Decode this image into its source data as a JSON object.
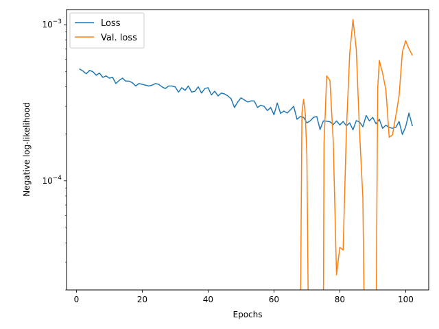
{
  "chart_data": {
    "type": "line",
    "xlabel": "Epochs",
    "ylabel": "Negative log-likelihood",
    "yscale": "log",
    "xlim": [
      -3,
      107
    ],
    "ylim": [
      2e-05,
      0.00125
    ],
    "x_ticks": [
      0,
      20,
      40,
      60,
      80,
      100
    ],
    "x_tick_labels": [
      "0",
      "20",
      "40",
      "60",
      "80",
      "100"
    ],
    "y_ticks": [
      0.0001,
      0.001
    ],
    "y_tick_labels": [
      {
        "base": "10",
        "exp": "−4"
      },
      {
        "base": "10",
        "exp": "−3"
      }
    ],
    "grid": false,
    "legend_position": "top-left",
    "series": [
      {
        "name": "Loss",
        "color": "#1f77b4",
        "x": [
          1,
          2,
          3,
          4,
          5,
          6,
          7,
          8,
          9,
          10,
          11,
          12,
          13,
          14,
          15,
          16,
          17,
          18,
          19,
          20,
          21,
          22,
          23,
          24,
          25,
          26,
          27,
          28,
          29,
          30,
          31,
          32,
          33,
          34,
          35,
          36,
          37,
          38,
          39,
          40,
          41,
          42,
          43,
          44,
          45,
          46,
          47,
          48,
          49,
          50,
          51,
          52,
          53,
          54,
          55,
          56,
          57,
          58,
          59,
          60,
          61,
          62,
          63,
          64,
          65,
          66,
          67,
          68,
          69,
          70,
          71,
          72,
          73,
          74,
          75,
          76,
          77,
          78,
          79,
          80,
          81,
          82,
          83,
          84,
          85,
          86,
          87,
          88,
          89,
          90,
          91,
          92,
          93,
          94,
          95,
          96,
          97,
          98,
          99,
          100,
          101,
          102
        ],
        "values": [
          0.00052,
          0.000505,
          0.000485,
          0.00051,
          0.0005,
          0.000475,
          0.00049,
          0.00046,
          0.00047,
          0.000455,
          0.00046,
          0.00042,
          0.00044,
          0.000455,
          0.000435,
          0.000435,
          0.000425,
          0.000405,
          0.00042,
          0.000415,
          0.00041,
          0.000405,
          0.00041,
          0.00042,
          0.000415,
          0.0004,
          0.00039,
          0.000405,
          0.000405,
          0.0004,
          0.00037,
          0.000395,
          0.00038,
          0.000405,
          0.00037,
          0.000375,
          0.0004,
          0.000365,
          0.00039,
          0.000395,
          0.000355,
          0.000375,
          0.00035,
          0.000365,
          0.00036,
          0.00035,
          0.000335,
          0.000295,
          0.00032,
          0.00034,
          0.00033,
          0.00032,
          0.000325,
          0.000325,
          0.000295,
          0.000305,
          0.0003,
          0.000282,
          0.000295,
          0.000265,
          0.000315,
          0.00027,
          0.00028,
          0.000272,
          0.000285,
          0.0003,
          0.000248,
          0.000258,
          0.000255,
          0.000235,
          0.000242,
          0.000255,
          0.000258,
          0.000213,
          0.000242,
          0.000241,
          0.000239,
          0.000229,
          0.000242,
          0.000228,
          0.00024,
          0.000225,
          0.000235,
          0.000212,
          0.000243,
          0.000238,
          0.000222,
          0.000262,
          0.000242,
          0.000255,
          0.000232,
          0.000248,
          0.000217,
          0.000227,
          0.00022,
          0.000217,
          0.00022,
          0.00024,
          0.000198,
          0.000222,
          0.000272,
          0.000226
        ]
      },
      {
        "name": "Val. loss",
        "color": "#ff7f0e",
        "x": [
          68,
          68.5,
          69,
          69.5,
          70,
          70.5,
          75,
          75.2,
          75.6,
          76,
          77,
          78,
          79,
          80,
          81,
          82,
          83,
          84,
          85,
          86,
          87,
          87.5,
          91,
          91.5,
          92,
          93,
          94,
          95,
          96,
          97,
          98,
          99,
          100,
          101,
          102
        ],
        "values": [
          1e-05,
          0.000272,
          0.000333,
          0.00027,
          0.000145,
          1e-05,
          1e-05,
          0.000175,
          0.000275,
          0.00047,
          0.00044,
          0.00018,
          2.5e-05,
          3.75e-05,
          3.6e-05,
          0.00021,
          0.00065,
          0.00108,
          0.0007,
          0.000205,
          7.8e-05,
          1e-05,
          1e-05,
          0.00039,
          0.00059,
          0.00049,
          0.00038,
          0.00019,
          0.000197,
          0.00026,
          0.00035,
          0.00067,
          0.00079,
          0.0007,
          0.00064
        ]
      }
    ]
  }
}
